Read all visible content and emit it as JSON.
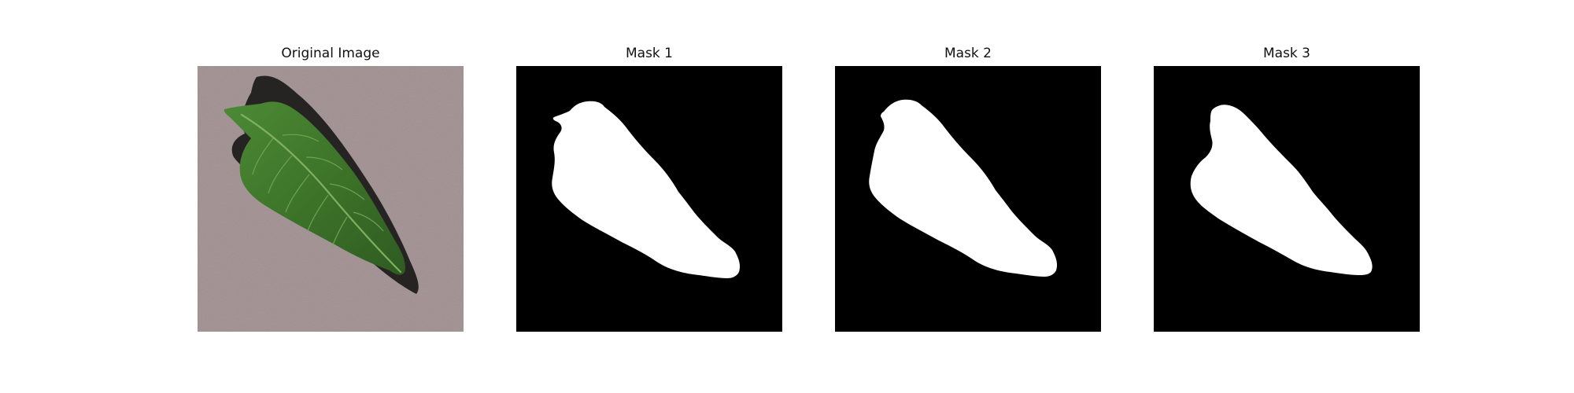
{
  "figure": {
    "panels": [
      {
        "title": "Original Image",
        "kind": "photo"
      },
      {
        "title": "Mask 1",
        "kind": "mask"
      },
      {
        "title": "Mask 2",
        "kind": "mask"
      },
      {
        "title": "Mask 3",
        "kind": "mask"
      }
    ]
  },
  "colors": {
    "background": "#ffffff",
    "mask_background": "#000000",
    "mask_foreground": "#ffffff",
    "photo_surface": "#a9999a",
    "leaf_dark": "#2f5b22",
    "leaf_light": "#5f9a43",
    "leaf_shadow": "#141313"
  }
}
